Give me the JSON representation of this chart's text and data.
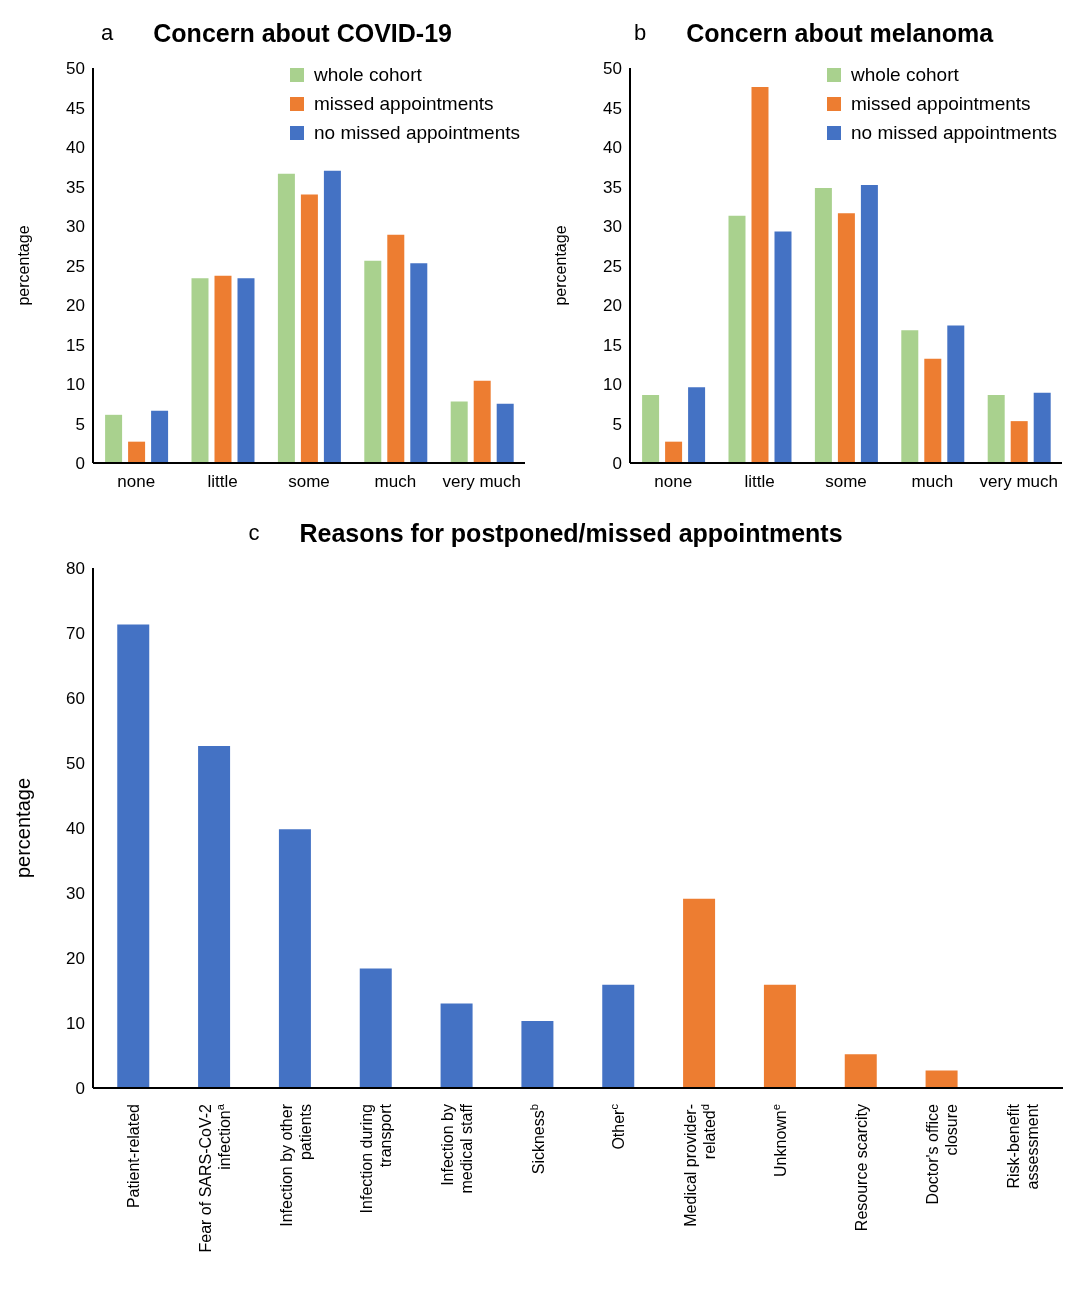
{
  "chart_data": [
    {
      "type": "bar",
      "title": "Concern about COVID-19",
      "annotations": [
        "a"
      ],
      "ylabel": "percentage",
      "categories": [
        "none",
        "little",
        "some",
        "much",
        "very much"
      ],
      "series": [
        {
          "name": "whole cohort",
          "color": "#a9d18e",
          "values": [
            6.1,
            23.4,
            36.6,
            25.6,
            7.8
          ]
        },
        {
          "name": "missed appointments",
          "color": "#ed7d31",
          "values": [
            2.7,
            23.7,
            34.0,
            28.9,
            10.4
          ]
        },
        {
          "name": "no missed appointments",
          "color": "#4472c4",
          "values": [
            6.6,
            23.4,
            37.0,
            25.3,
            7.5
          ]
        }
      ],
      "ylim": [
        0,
        50
      ],
      "yticks": [
        0,
        5,
        10,
        15,
        20,
        25,
        30,
        35,
        40,
        45,
        50
      ],
      "legend": "top right"
    },
    {
      "type": "bar",
      "title": "Concern about melanoma",
      "annotations": [
        "b"
      ],
      "ylabel": "percentage",
      "categories": [
        "none",
        "little",
        "some",
        "much",
        "very much"
      ],
      "series": [
        {
          "name": "whole cohort",
          "color": "#a9d18e",
          "values": [
            8.6,
            31.3,
            34.8,
            16.8,
            8.6
          ]
        },
        {
          "name": "missed appointments",
          "color": "#ed7d31",
          "values": [
            2.7,
            47.6,
            31.6,
            13.2,
            5.3
          ]
        },
        {
          "name": "no missed appointments",
          "color": "#4472c4",
          "values": [
            9.6,
            29.3,
            35.2,
            17.4,
            8.9
          ]
        }
      ],
      "ylim": [
        0,
        50
      ],
      "yticks": [
        0,
        5,
        10,
        15,
        20,
        25,
        30,
        35,
        40,
        45,
        50
      ],
      "legend": "top right"
    },
    {
      "type": "bar",
      "title": "Reasons for postponed/missed  appointments",
      "annotations": [
        "c"
      ],
      "ylabel": "percentage",
      "categories": [
        "Patient-related",
        "Fear of SARS-CoV-2 infection$^{a}$",
        "Infection by other patients",
        "Infection during transport",
        "Infection by medical staff",
        "Sickness$^{b}$",
        "Other$^{c}$",
        "Medical provider-related$^{d}$",
        "Unknown$^{e}$",
        "Resource scarcity",
        "Doctor's office closure",
        "Risk-benefit assessment"
      ],
      "values": [
        71.3,
        52.6,
        39.8,
        18.4,
        13.0,
        10.3,
        15.9,
        29.1,
        15.9,
        5.2,
        2.7,
        0
      ],
      "colors": [
        "#4472c4",
        "#4472c4",
        "#4472c4",
        "#4472c4",
        "#4472c4",
        "#4472c4",
        "#4472c4",
        "#ed7d31",
        "#ed7d31",
        "#ed7d31",
        "#ed7d31",
        "#ed7d31"
      ],
      "ylim": [
        0,
        80
      ],
      "yticks": [
        0,
        10,
        20,
        30,
        40,
        50,
        60,
        70,
        80
      ]
    }
  ]
}
